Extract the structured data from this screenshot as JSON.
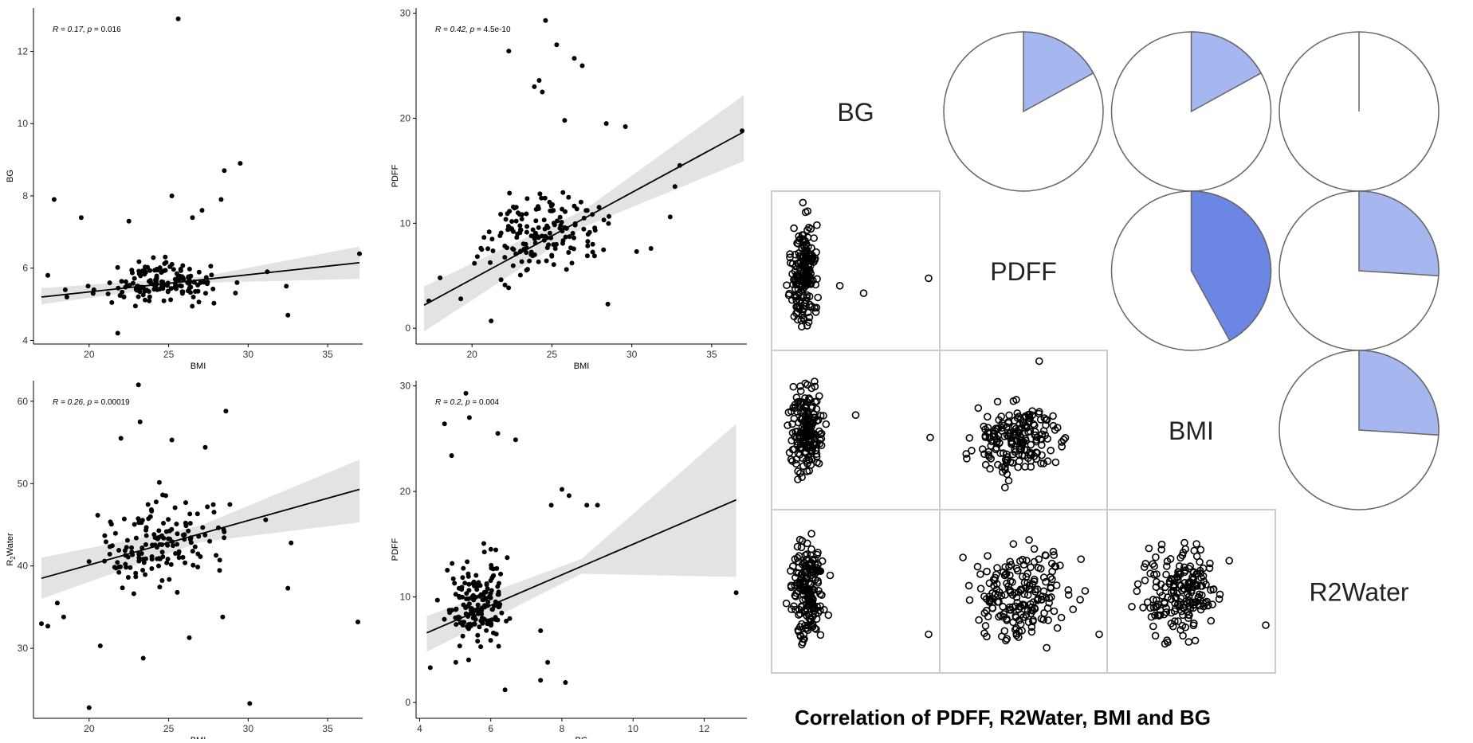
{
  "matrix_title": "Correlation of PDFF, R2Water, BMI and BG",
  "colors": {
    "point": "#000000",
    "gray_point": "#555555",
    "ribbon": "#d9d9d9",
    "line": "#000000",
    "pie_light": "#a6b7ef",
    "pie_dark": "#6b86e3",
    "panel_border": "#cccccc"
  },
  "chart_data": [
    {
      "id": "bmi-bg",
      "type": "scatter",
      "title": "",
      "xlabel": "BMI",
      "ylabel": "BG",
      "ylabel_sub": "",
      "ylabel_tail": "",
      "annotation": {
        "r": "R = 0.17, ",
        "p_label": "p",
        "p_value": " = 0.016"
      },
      "xlim": [
        16.5,
        37.2
      ],
      "ylim": [
        3.9,
        13.2
      ],
      "xticks": [
        20,
        25,
        30,
        35
      ],
      "yticks": [
        4,
        6,
        8,
        10,
        12
      ],
      "trend": {
        "x0": 17,
        "y0": 5.2,
        "x1": 37,
        "y1": 6.15,
        "ci_lo0": 0.2,
        "ci_hi0": 0.25,
        "ci_mid": 0.08,
        "ci_lo1": 0.45,
        "ci_hi1": 0.45
      },
      "points": [
        [
          17.8,
          7.9
        ],
        [
          19.5,
          7.4
        ],
        [
          25.6,
          12.9
        ],
        [
          28.5,
          8.7
        ],
        [
          29.5,
          8.9
        ],
        [
          37,
          6.4
        ],
        [
          31.2,
          5.9
        ],
        [
          32.4,
          5.5
        ],
        [
          32.5,
          4.7
        ],
        [
          28.3,
          7.9
        ],
        [
          27.1,
          7.6
        ],
        [
          25.2,
          8.0
        ],
        [
          22.5,
          7.3
        ],
        [
          18.5,
          5.4
        ],
        [
          18.6,
          5.2
        ],
        [
          17.4,
          5.8
        ],
        [
          20.3,
          5.4
        ],
        [
          21.8,
          4.2
        ],
        [
          26.5,
          7.4
        ],
        [
          29.3,
          5.6
        ]
      ],
      "cluster": {
        "n": 150,
        "x": [
          19.5,
          29.5
        ],
        "y": [
          4.4,
          6.8
        ],
        "seed": 11
      }
    },
    {
      "id": "bmi-pdff",
      "type": "scatter",
      "title": "",
      "xlabel": "BMI",
      "ylabel": "PDFF",
      "ylabel_sub": "",
      "ylabel_tail": "",
      "annotation": {
        "r": "R = 0.42, ",
        "p_label": "p",
        "p_value": " = 4.5e-10"
      },
      "xlim": [
        16.5,
        37.2
      ],
      "ylim": [
        -1.5,
        30.5
      ],
      "xticks": [
        20,
        25,
        30,
        35
      ],
      "yticks": [
        0,
        10,
        20,
        30
      ],
      "trend": {
        "x0": 17,
        "y0": 2.2,
        "x1": 37,
        "y1": 18.7,
        "ci_lo0": 2.5,
        "ci_hi0": 1.8,
        "ci_mid": 0.8,
        "ci_lo1": 2.8,
        "ci_hi1": 3.5
      },
      "points": [
        [
          24.6,
          29.3
        ],
        [
          25.3,
          27.0
        ],
        [
          22.3,
          26.4
        ],
        [
          26.4,
          25.7
        ],
        [
          26.9,
          25.0
        ],
        [
          24.2,
          23.6
        ],
        [
          23.9,
          23.0
        ],
        [
          24.4,
          22.5
        ],
        [
          25.8,
          19.8
        ],
        [
          28.4,
          19.5
        ],
        [
          29.6,
          19.2
        ],
        [
          33.0,
          15.5
        ],
        [
          32.7,
          13.5
        ],
        [
          36.9,
          18.8
        ],
        [
          32.4,
          10.6
        ],
        [
          31.2,
          7.6
        ],
        [
          30.3,
          7.3
        ],
        [
          18.0,
          4.8
        ],
        [
          17.3,
          2.6
        ],
        [
          21.2,
          0.7
        ],
        [
          19.3,
          2.8
        ],
        [
          28.5,
          2.3
        ]
      ],
      "cluster": {
        "n": 160,
        "x": [
          19.0,
          29.5
        ],
        "y": [
          0.8,
          18.0
        ],
        "seed": 23
      }
    },
    {
      "id": "bmi-r2water",
      "type": "scatter",
      "title": "",
      "xlabel": "BMI",
      "ylabel": "R",
      "ylabel_sub": "2",
      "ylabel_tail": "Water",
      "annotation": {
        "r": "R = 0.26, ",
        "p_label": "p",
        "p_value": " = 0.00019"
      },
      "xlim": [
        16.5,
        37.2
      ],
      "ylim": [
        21.5,
        62.5
      ],
      "xticks": [
        20,
        25,
        30,
        35
      ],
      "yticks": [
        30,
        40,
        50,
        60
      ],
      "trend": {
        "x0": 17,
        "y0": 38.5,
        "x1": 37,
        "y1": 49.3,
        "ci_lo0": 2.5,
        "ci_hi0": 2.5,
        "ci_mid": 1.0,
        "ci_lo1": 4.0,
        "ci_hi1": 3.6
      },
      "points": [
        [
          23.1,
          62.0
        ],
        [
          28.6,
          58.8
        ],
        [
          23.2,
          57.5
        ],
        [
          22.0,
          55.5
        ],
        [
          20.0,
          22.8
        ],
        [
          30.1,
          23.3
        ],
        [
          36.9,
          33.2
        ],
        [
          32.5,
          37.3
        ],
        [
          17.0,
          33.0
        ],
        [
          17.4,
          32.7
        ],
        [
          18.0,
          35.5
        ],
        [
          18.4,
          33.8
        ],
        [
          20.7,
          30.3
        ],
        [
          23.4,
          28.8
        ],
        [
          32.7,
          42.8
        ],
        [
          31.1,
          45.6
        ],
        [
          27.3,
          54.4
        ],
        [
          25.2,
          55.3
        ],
        [
          28.4,
          33.8
        ],
        [
          26.3,
          31.3
        ]
      ],
      "cluster": {
        "n": 150,
        "x": [
          19.0,
          30.0
        ],
        "y": [
          31.0,
          54.0
        ],
        "seed": 37
      }
    },
    {
      "id": "bg-pdff",
      "type": "scatter",
      "title": "",
      "xlabel": "BG",
      "ylabel": "PDFF",
      "ylabel_sub": "",
      "ylabel_tail": "",
      "annotation": {
        "r": "R = 0.2, ",
        "p_label": "p",
        "p_value": " = 0.004"
      },
      "xlim": [
        3.9,
        13.2
      ],
      "ylim": [
        -1.5,
        30.5
      ],
      "xticks": [
        4,
        6,
        8,
        10,
        12
      ],
      "yticks": [
        0,
        10,
        20,
        30
      ],
      "trend": {
        "x0": 4.2,
        "y0": 6.6,
        "x1": 12.9,
        "y1": 19.2,
        "ci_lo0": 1.8,
        "ci_hi0": 1.6,
        "ci_mid": 0.7,
        "ci_lo1": 7.3,
        "ci_hi1": 7.2
      },
      "points": [
        [
          5.3,
          29.3
        ],
        [
          5.4,
          27.0
        ],
        [
          4.7,
          26.4
        ],
        [
          6.2,
          25.5
        ],
        [
          6.7,
          24.9
        ],
        [
          4.9,
          23.4
        ],
        [
          8.0,
          20.2
        ],
        [
          8.2,
          19.6
        ],
        [
          7.7,
          18.7
        ],
        [
          8.7,
          18.7
        ],
        [
          9.0,
          18.7
        ],
        [
          12.9,
          10.4
        ],
        [
          7.4,
          6.8
        ],
        [
          7.6,
          3.8
        ],
        [
          7.4,
          2.1
        ],
        [
          8.1,
          1.9
        ],
        [
          6.4,
          1.2
        ],
        [
          4.5,
          9.7
        ],
        [
          4.3,
          3.3
        ],
        [
          6.2,
          9.4
        ]
      ],
      "cluster": {
        "n": 160,
        "x": [
          4.4,
          6.8
        ],
        "y": [
          0.8,
          18.5
        ],
        "seed": 51
      }
    },
    {
      "id": "correlation-matrix",
      "type": "scatter",
      "title": "Correlation of PDFF, R2Water, BMI and BG",
      "variables": [
        "BG",
        "PDFF",
        "BMI",
        "R2Water"
      ],
      "pies": [
        {
          "row": 0,
          "col": 1,
          "r": 0.17
        },
        {
          "row": 0,
          "col": 2,
          "r": 0.17
        },
        {
          "row": 0,
          "col": 3,
          "r": 0.0
        },
        {
          "row": 1,
          "col": 2,
          "r": 0.42
        },
        {
          "row": 1,
          "col": 3,
          "r": 0.26
        },
        {
          "row": 2,
          "col": 3,
          "r": 0.26
        }
      ],
      "scatters": [
        {
          "row": 1,
          "col": 0,
          "seed": 61,
          "cluster": [
            0.05,
            0.3,
            0.02,
            0.98
          ],
          "extra": [
            [
              0.96,
              0.55
            ],
            [
              0.4,
              0.6
            ],
            [
              0.55,
              0.65
            ]
          ]
        },
        {
          "row": 2,
          "col": 0,
          "seed": 71,
          "cluster": [
            0.05,
            0.32,
            0.05,
            0.95
          ],
          "extra": [
            [
              0.97,
              0.55
            ],
            [
              0.5,
              0.4
            ]
          ]
        },
        {
          "row": 2,
          "col": 1,
          "seed": 81,
          "cluster": [
            0.05,
            0.85,
            0.2,
            0.95
          ],
          "extra": [
            [
              0.6,
              0.04
            ]
          ]
        },
        {
          "row": 3,
          "col": 0,
          "seed": 91,
          "cluster": [
            0.05,
            0.35,
            0.05,
            0.95
          ],
          "extra": [
            [
              0.96,
              0.78
            ]
          ]
        },
        {
          "row": 3,
          "col": 1,
          "seed": 101,
          "cluster": [
            0.05,
            0.95,
            0.1,
            0.95
          ],
          "extra": [
            [
              0.98,
              0.78
            ]
          ]
        },
        {
          "row": 3,
          "col": 2,
          "seed": 111,
          "cluster": [
            0.08,
            0.8,
            0.1,
            0.95
          ],
          "extra": [
            [
              0.97,
              0.72
            ]
          ]
        }
      ]
    }
  ]
}
